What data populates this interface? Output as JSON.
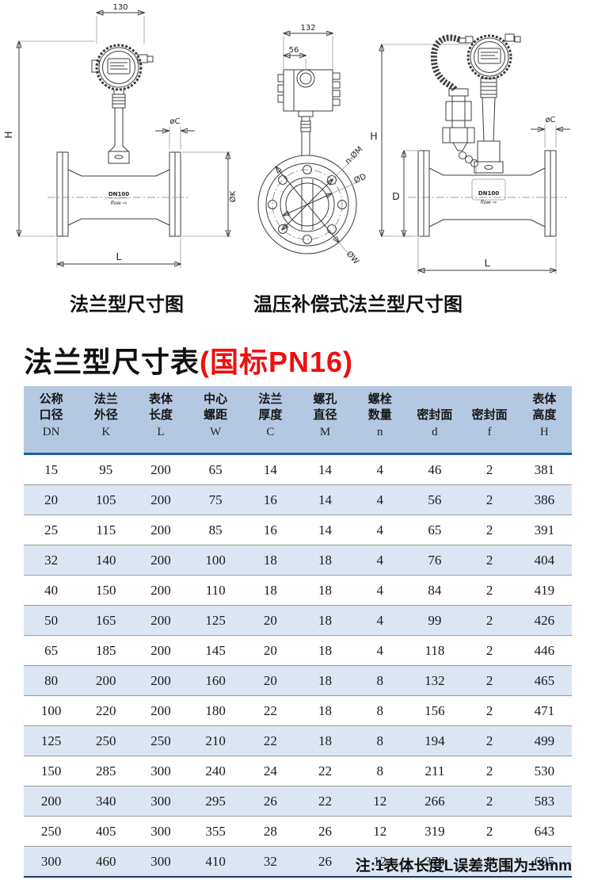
{
  "drawings": {
    "left": {
      "caption": "法兰型尺寸图",
      "dim_width_top": "130",
      "dim_height": "H",
      "dim_flange_thickness": "øC",
      "dim_flange_od": "ØK",
      "dim_length": "L",
      "body_label": "DN100",
      "flow_label": "flow ⇨"
    },
    "middle": {
      "caption": "温压补偿式法兰型尺寸图",
      "dim_width_top": "132",
      "dim_offset": "56",
      "dim_bolt_holes": "n-ØM",
      "dim_bore": "ØD",
      "dim_raised_face": "ØW"
    },
    "right": {
      "dim_height": "H",
      "dim_pipe_od": "D",
      "dim_flange_thickness": "øC",
      "dim_length": "L",
      "body_label": "DN100",
      "flow_label": "flow ⇨"
    }
  },
  "title": {
    "main": "法兰型尺寸表",
    "suffix": "(国标PN16)",
    "suffix_color": "#ee0f0f"
  },
  "table": {
    "header_bg": "#b5c8e1",
    "stripe_bg": "#dce6f3",
    "accent_line_color": "#1e5fa8",
    "columns": [
      {
        "zh1": "公称",
        "zh2": "口径",
        "code": "DN"
      },
      {
        "zh1": "法兰",
        "zh2": "外径",
        "code": "K"
      },
      {
        "zh1": "表体",
        "zh2": "长度",
        "code": "L"
      },
      {
        "zh1": "中心",
        "zh2": "螺距",
        "code": "W"
      },
      {
        "zh1": "法兰",
        "zh2": "厚度",
        "code": "C"
      },
      {
        "zh1": "螺孔",
        "zh2": "直径",
        "code": "M"
      },
      {
        "zh1": "螺栓",
        "zh2": "数量",
        "code": "n"
      },
      {
        "zh1": "",
        "zh2": "密封面",
        "code": "d"
      },
      {
        "zh1": "",
        "zh2": "密封面",
        "code": "f"
      },
      {
        "zh1": "表体",
        "zh2": "高度",
        "code": "H"
      }
    ],
    "rows": [
      [
        "15",
        "95",
        "200",
        "65",
        "14",
        "14",
        "4",
        "46",
        "2",
        "381"
      ],
      [
        "20",
        "105",
        "200",
        "75",
        "16",
        "14",
        "4",
        "56",
        "2",
        "386"
      ],
      [
        "25",
        "115",
        "200",
        "85",
        "16",
        "14",
        "4",
        "65",
        "2",
        "391"
      ],
      [
        "32",
        "140",
        "200",
        "100",
        "18",
        "18",
        "4",
        "76",
        "2",
        "404"
      ],
      [
        "40",
        "150",
        "200",
        "110",
        "18",
        "18",
        "4",
        "84",
        "2",
        "419"
      ],
      [
        "50",
        "165",
        "200",
        "125",
        "20",
        "18",
        "4",
        "99",
        "2",
        "426"
      ],
      [
        "65",
        "185",
        "200",
        "145",
        "20",
        "18",
        "4",
        "118",
        "2",
        "446"
      ],
      [
        "80",
        "200",
        "200",
        "160",
        "20",
        "18",
        "8",
        "132",
        "2",
        "465"
      ],
      [
        "100",
        "220",
        "200",
        "180",
        "22",
        "18",
        "8",
        "156",
        "2",
        "471"
      ],
      [
        "125",
        "250",
        "250",
        "210",
        "22",
        "18",
        "8",
        "194",
        "2",
        "499"
      ],
      [
        "150",
        "285",
        "300",
        "240",
        "24",
        "22",
        "8",
        "211",
        "2",
        "530"
      ],
      [
        "200",
        "340",
        "300",
        "295",
        "26",
        "22",
        "12",
        "266",
        "2",
        "583"
      ],
      [
        "250",
        "405",
        "300",
        "355",
        "28",
        "26",
        "12",
        "319",
        "2",
        "643"
      ],
      [
        "300",
        "460",
        "300",
        "410",
        "32",
        "26",
        "12",
        "370",
        "2",
        "695"
      ]
    ]
  },
  "note": "注:1表体长度L误差范围为±3mm"
}
